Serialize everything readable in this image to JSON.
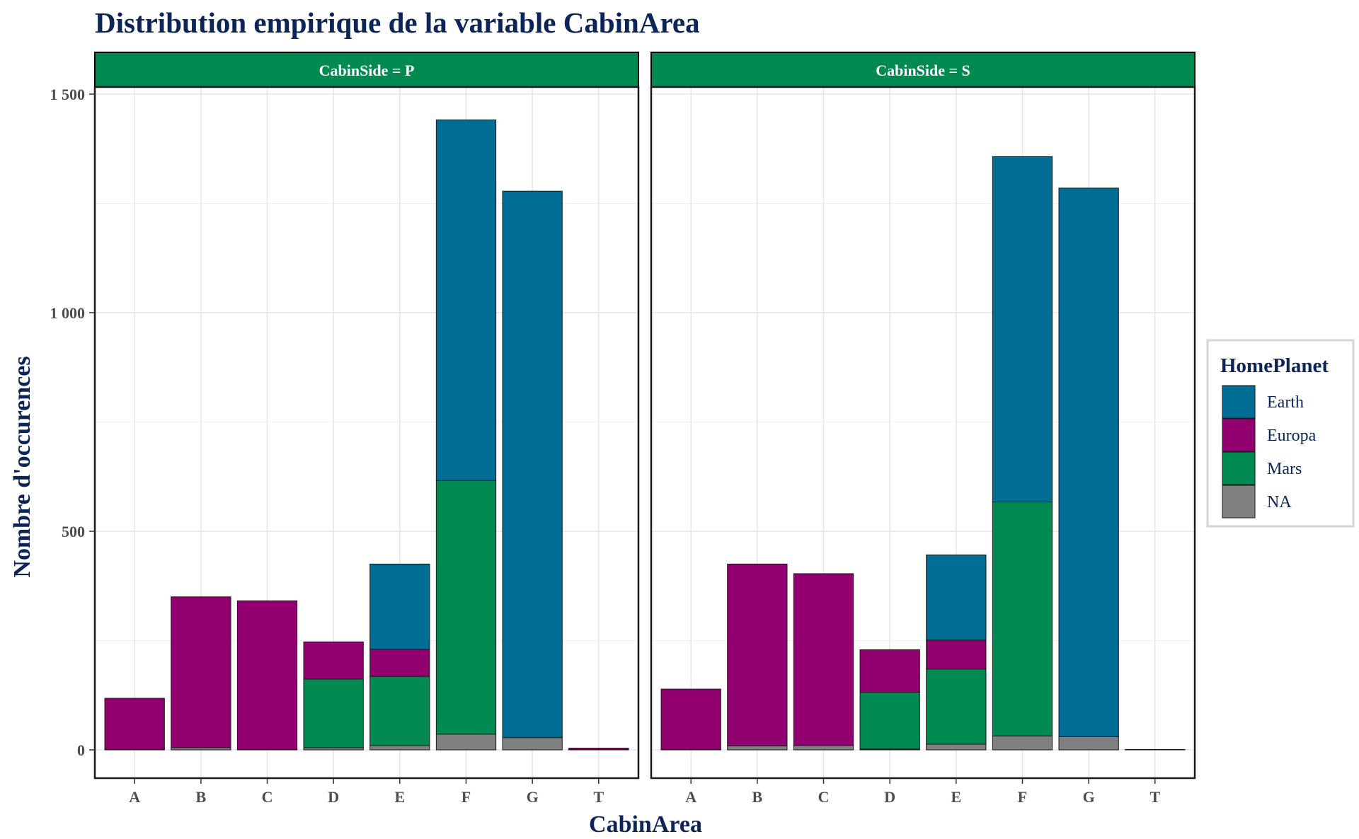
{
  "chart_data": {
    "type": "bar",
    "stacked": true,
    "title": "Distribution empirique de la variable CabinArea",
    "xlabel": "CabinArea",
    "ylabel": "Nombre d'occurences",
    "ylim": [
      -70,
      1600
    ],
    "yticks": [
      0,
      500,
      1000,
      1500
    ],
    "ytick_labels": [
      "0",
      "500",
      "1 000",
      "1 500"
    ],
    "grid": true,
    "legend": {
      "title": "HomePlanet",
      "position": "right"
    },
    "categories": [
      "A",
      "B",
      "C",
      "D",
      "E",
      "F",
      "G",
      "T"
    ],
    "stack_order": [
      "NA",
      "Mars",
      "Europa",
      "Earth"
    ],
    "series_colors": {
      "Earth": "#006e94",
      "Europa": "#920070",
      "Mars": "#008a52",
      "NA": "#808080"
    },
    "legend_order": [
      "Earth",
      "Europa",
      "Mars",
      "NA"
    ],
    "facets": [
      {
        "label": "CabinSide = P",
        "series": [
          {
            "name": "Earth",
            "values": [
              0,
              0,
              0,
              0,
              195,
              825,
              1250,
              0
            ]
          },
          {
            "name": "Europa",
            "values": [
              117,
              345,
              340,
              85,
              62,
              0,
              0,
              3
            ]
          },
          {
            "name": "Mars",
            "values": [
              0,
              0,
              0,
              157,
              158,
              580,
              0,
              0
            ]
          },
          {
            "name": "NA",
            "values": [
              1,
              5,
              1,
              5,
              10,
              36,
              28,
              1
            ]
          }
        ]
      },
      {
        "label": "CabinSide = S",
        "series": [
          {
            "name": "Earth",
            "values": [
              0,
              0,
              0,
              0,
              195,
              790,
              1255,
              0
            ]
          },
          {
            "name": "Europa",
            "values": [
              138,
              416,
              393,
              97,
              66,
              0,
              0,
              1
            ]
          },
          {
            "name": "Mars",
            "values": [
              0,
              0,
              0,
              130,
              172,
              535,
              0,
              0
            ]
          },
          {
            "name": "NA",
            "values": [
              1,
              9,
              10,
              2,
              13,
              32,
              30,
              0
            ]
          }
        ]
      }
    ]
  }
}
